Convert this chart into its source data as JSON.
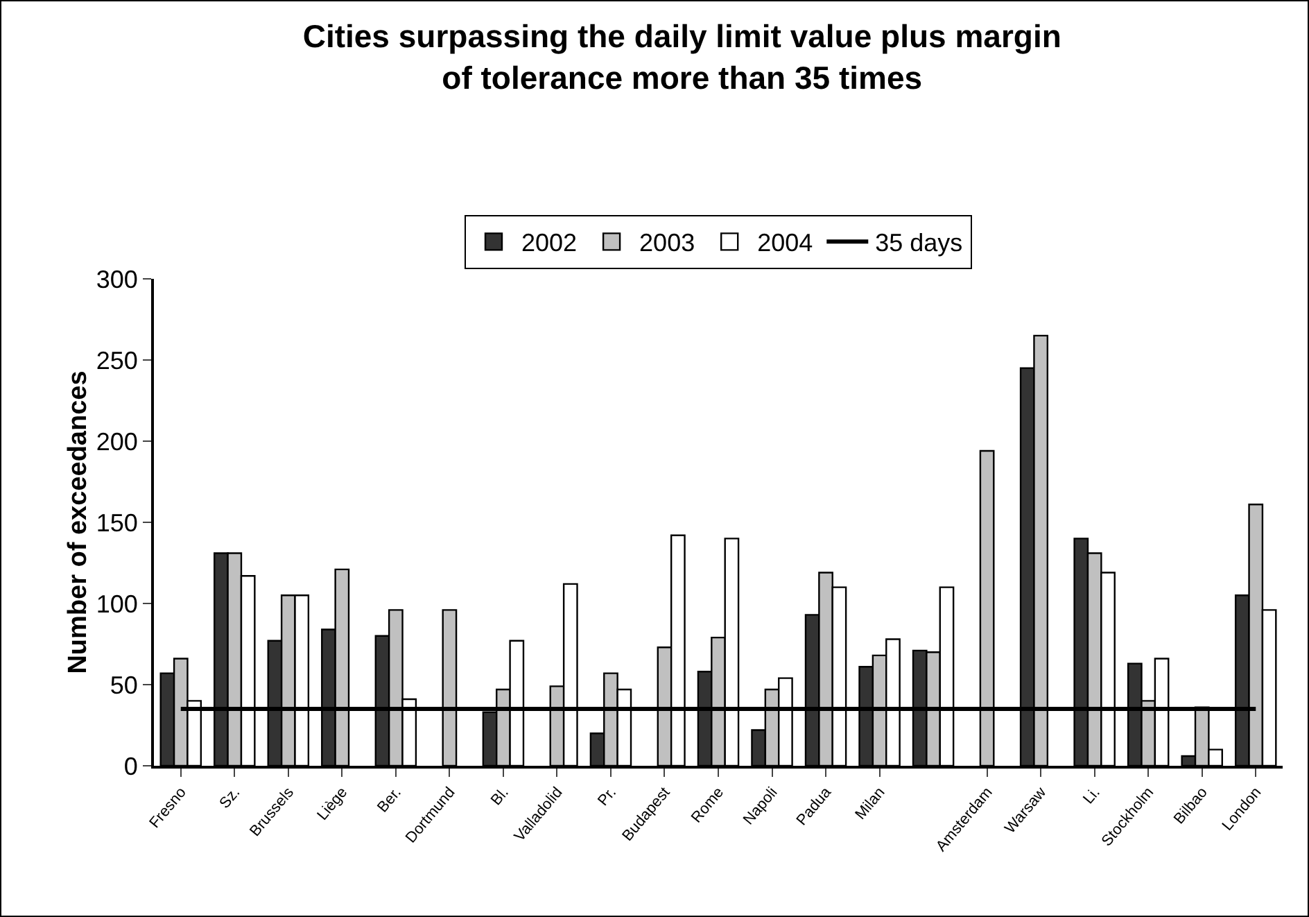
{
  "chart_data": {
    "type": "bar",
    "title": "Cities surpassing the daily limit value plus margin of tolerance more than 35 times",
    "ylabel": "Number of exceedances",
    "categories": [
      "Fresno",
      "Sz.",
      "Brussels",
      "Liège",
      "Ber.",
      "Dortmund",
      "Bl.",
      "Valladolid",
      "Pr.",
      "Budapest",
      "Rome",
      "Napoli",
      "Padua",
      "Milan",
      null,
      "Amsterdam",
      "Warsaw",
      "Li.",
      "Stockholm",
      "Bilbao",
      "London"
    ],
    "series": [
      {
        "name": "2002",
        "color": "#333333",
        "values": [
          57,
          131,
          77,
          84,
          80,
          null,
          33,
          null,
          20,
          null,
          58,
          22,
          93,
          61,
          71,
          null,
          245,
          140,
          63,
          6,
          105
        ]
      },
      {
        "name": "2003",
        "color": "#c0c0c0",
        "values": [
          66,
          131,
          105,
          121,
          96,
          96,
          47,
          49,
          57,
          73,
          79,
          47,
          119,
          68,
          70,
          194,
          265,
          131,
          40,
          36,
          161
        ]
      },
      {
        "name": "2004",
        "color": "#ffffff",
        "values": [
          40,
          117,
          105,
          null,
          41,
          null,
          77,
          112,
          47,
          142,
          140,
          54,
          110,
          78,
          110,
          null,
          null,
          119,
          66,
          10,
          96
        ]
      },
      {
        "name": "35 days",
        "type": "line",
        "color": "#000000",
        "marker": "none",
        "values": [
          35,
          35,
          35,
          35,
          35,
          35,
          35,
          35,
          35,
          35,
          35,
          35,
          35,
          35,
          35,
          35,
          35,
          35,
          35,
          35,
          35
        ]
      }
    ],
    "ylim": [
      0,
      300
    ],
    "yticks": [
      0,
      50,
      100,
      150,
      200,
      250,
      300
    ],
    "grid": false,
    "legend": "top"
  }
}
